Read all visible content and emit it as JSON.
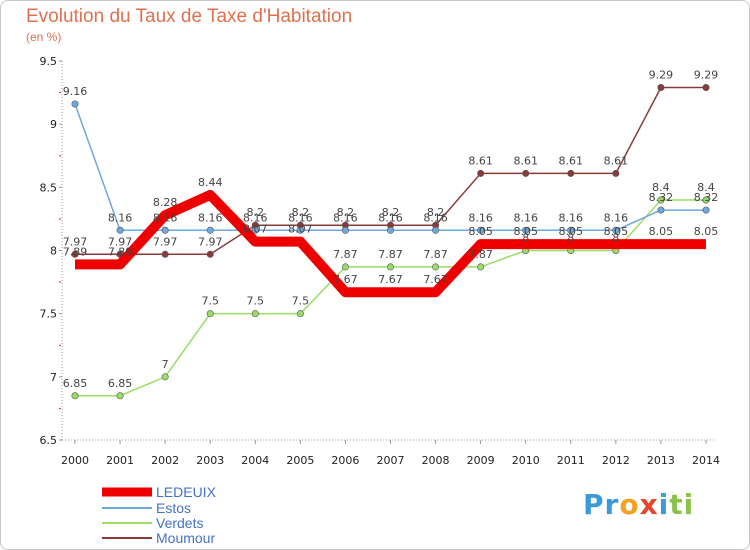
{
  "chart_data": {
    "type": "line",
    "title": "Evolution du Taux de Taxe d'Habitation",
    "subtitle": "(en %)",
    "xlabel": "",
    "ylabel": "(en %)",
    "ylim": [
      6.5,
      9.5
    ],
    "yticks": [
      "6.5",
      "7",
      "7.5",
      "8",
      "8.5",
      "9",
      "9.5"
    ],
    "categories": [
      "2000",
      "2001",
      "2002",
      "2003",
      "2004",
      "2005",
      "2006",
      "2007",
      "2008",
      "2009",
      "2010",
      "2011",
      "2012",
      "2013",
      "2014"
    ],
    "series": [
      {
        "name": "LEDEUIX",
        "color": "#ee0000",
        "values": [
          7.89,
          7.89,
          8.28,
          8.44,
          8.07,
          8.07,
          7.67,
          7.67,
          7.67,
          8.05,
          8.05,
          8.05,
          8.05,
          8.05,
          8.05
        ],
        "labels": [
          "7.89",
          "7.89",
          "8.28",
          "8.44",
          "8.07",
          "8.07",
          "7.67",
          "7.67",
          "7.67",
          "8.05",
          "8.05",
          "8.05",
          "8.05",
          "8.05",
          "8.05"
        ]
      },
      {
        "name": "Estos",
        "color": "#6fa8dc",
        "values": [
          9.16,
          8.16,
          8.16,
          8.16,
          8.16,
          8.16,
          8.16,
          8.16,
          8.16,
          8.16,
          8.16,
          8.16,
          8.16,
          8.32,
          8.32
        ],
        "labels": [
          "9.16",
          "8.16",
          "8.16",
          "8.16",
          "8.16",
          "8.16",
          "8.16",
          "8.16",
          "8.16",
          "8.16",
          "8.16",
          "8.16",
          "8.16",
          "8.32",
          "8.32"
        ]
      },
      {
        "name": "Verdets",
        "color": "#99dd66",
        "values": [
          6.85,
          6.85,
          7.0,
          7.5,
          7.5,
          7.5,
          7.87,
          7.87,
          7.87,
          7.87,
          8.0,
          8.0,
          8.0,
          8.4,
          8.4
        ],
        "labels": [
          "6.85",
          "6.85",
          "7",
          "7.5",
          "7.5",
          "7.5",
          "7.87",
          "7.87",
          "7.87",
          "7.87",
          "8",
          "8",
          "8",
          "8.4",
          "8.4"
        ]
      },
      {
        "name": "Moumour",
        "color": "#8b3a3a",
        "values": [
          7.97,
          7.97,
          7.97,
          7.97,
          8.2,
          8.2,
          8.2,
          8.2,
          8.2,
          8.61,
          8.61,
          8.61,
          8.61,
          9.29,
          9.29
        ],
        "labels": [
          "7.97",
          "7.97",
          "7.97",
          "7.97",
          "8.2",
          "8.2",
          "8.2",
          "8.2",
          "8.2",
          "8.61",
          "8.61",
          "8.61",
          "8.61",
          "9.29",
          "9.29"
        ]
      }
    ],
    "legend": [
      "LEDEUIX",
      "Estos",
      "Verdets",
      "Moumour"
    ],
    "legend_position": "bottom-left",
    "grid": false
  },
  "logo": {
    "parts": [
      "Pr",
      "o",
      "x",
      "i",
      "ti"
    ]
  }
}
